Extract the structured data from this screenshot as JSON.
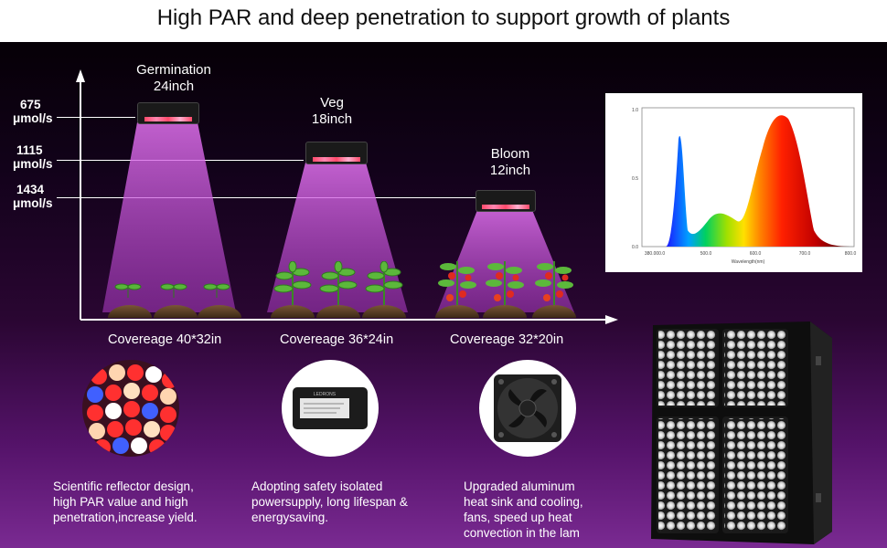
{
  "header": {
    "title": "High PAR and deep penetration to support growth of plants"
  },
  "y_axis": {
    "levels": [
      {
        "value": "675",
        "unit": "μmol/s"
      },
      {
        "value": "1115",
        "unit": "μmol/s"
      },
      {
        "value": "1434",
        "unit": "μmol/s"
      }
    ]
  },
  "stages": [
    {
      "name": "Germination",
      "height": "24inch",
      "coverage": "Covereage 40*32in"
    },
    {
      "name": "Veg",
      "height": "18inch",
      "coverage": "Covereage 36*24in"
    },
    {
      "name": "Bloom",
      "height": "12inch",
      "coverage": "Covereage 32*20in"
    }
  ],
  "spectrum": {
    "y_ticks": [
      "1.0",
      "0.5",
      "0.0"
    ],
    "x_ticks": [
      "380.000.0",
      "500.0",
      "600.0",
      "700.0",
      "800.0"
    ],
    "xlabel": "Wavelength(nm)"
  },
  "driver_label": "LEDRONS",
  "features": [
    {
      "text": [
        "Scientific reflector design,",
        "high PAR value and high",
        "penetration,increase yield."
      ]
    },
    {
      "text": [
        "Adopting safety isolated",
        "powersupply, long lifespan &",
        "energysaving."
      ]
    },
    {
      "text": [
        "Upgraded aluminum",
        "heat sink and cooling,",
        "fans, speed up heat",
        "convection in the lam"
      ]
    }
  ],
  "colors": {
    "beam": "#d255e0",
    "background_top": "#060006",
    "background_bottom": "#7a2a92"
  },
  "icons": [
    "led-closeup-icon",
    "power-supply-icon",
    "cooling-fan-icon",
    "led-panel-icon"
  ]
}
